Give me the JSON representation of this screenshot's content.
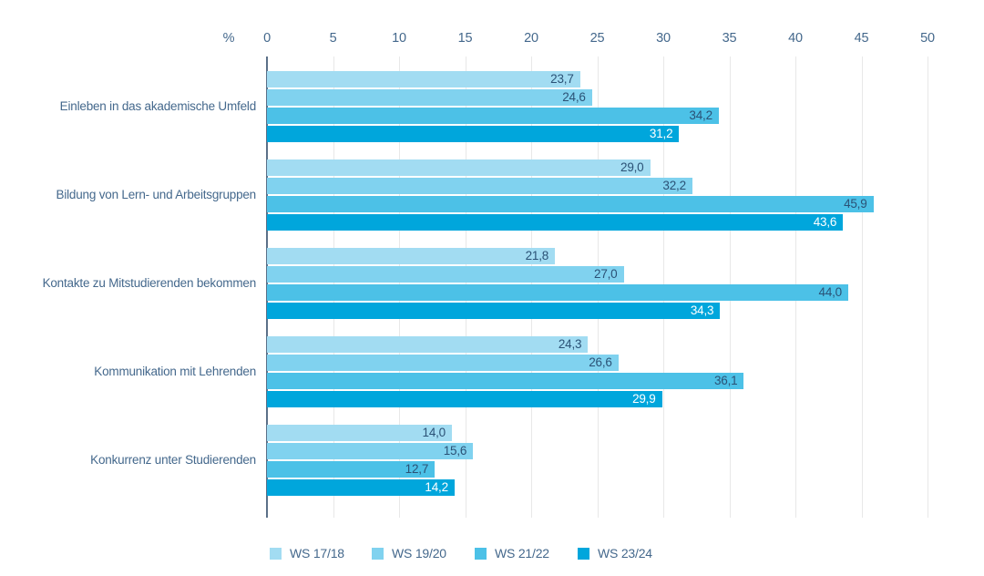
{
  "chart_data": {
    "type": "bar",
    "orientation": "horizontal",
    "title": "",
    "unit_label": "%",
    "xlim": [
      0,
      50
    ],
    "x_ticks": [
      0,
      5,
      10,
      15,
      20,
      25,
      30,
      35,
      40,
      45,
      50
    ],
    "grid": true,
    "legend_position": "bottom",
    "categories": [
      "Einleben in das akademische Umfeld",
      "Bildung von Lern- und Arbeitsgruppen",
      "Kontakte zu Mitstudierenden bekommen",
      "Kommunikation mit Lehrenden",
      "Konkurrenz unter Studierenden"
    ],
    "series": [
      {
        "name": "WS 17/18",
        "color": "#a2dcf2",
        "value_label_color": "#2b5276",
        "values": [
          23.7,
          29.0,
          21.8,
          24.3,
          14.0
        ],
        "value_labels": [
          "23,7",
          "29,0",
          "21,8",
          "24,3",
          "14,0"
        ]
      },
      {
        "name": "WS 19/20",
        "color": "#80d2ef",
        "value_label_color": "#2b5276",
        "values": [
          24.6,
          32.2,
          27.0,
          26.6,
          15.6
        ],
        "value_labels": [
          "24,6",
          "32,2",
          "27,0",
          "26,6",
          "15,6"
        ]
      },
      {
        "name": "WS 21/22",
        "color": "#4cc1e7",
        "value_label_color": "#2b5276",
        "values": [
          34.2,
          45.9,
          44.0,
          36.1,
          12.7
        ],
        "value_labels": [
          "34,2",
          "45,9",
          "44,0",
          "36,1",
          "12,7"
        ]
      },
      {
        "name": "WS 23/24",
        "color": "#00a6dc",
        "value_label_color": "#ffffff",
        "values": [
          31.2,
          43.6,
          34.3,
          29.9,
          14.2
        ],
        "value_labels": [
          "31,2",
          "43,6",
          "34,3",
          "29,9",
          "14,2"
        ]
      }
    ],
    "colors": {
      "axis_text": "#44688c",
      "category_text": "#44688c",
      "grid_line": "#e8e8e8",
      "zero_line": "#5b7088"
    }
  }
}
